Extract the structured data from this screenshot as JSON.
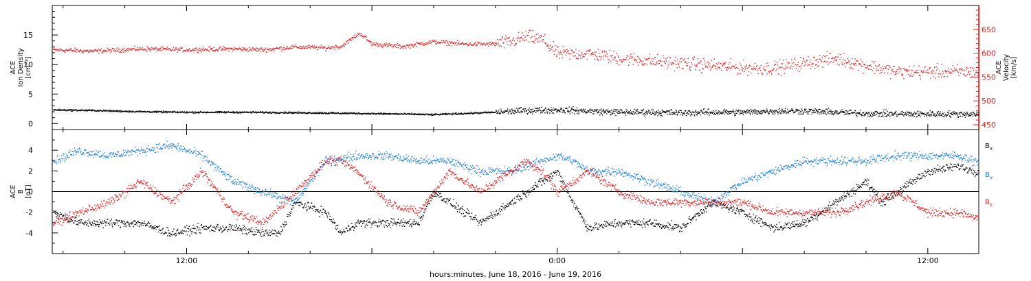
{
  "xlabel": "hours:minutes, June 18, 2016 - June 19, 2016",
  "colors": {
    "axes": "#000000",
    "density": "#000000",
    "velocity": "#e41c1c",
    "bx": "#000000",
    "by": "#1a7fe0",
    "bz": "#e41c1c"
  },
  "chart_data": [
    {
      "type": "scatter",
      "panel": "top",
      "x_unit": "hours since 00:00 June 18, 2016",
      "xlim": [
        7.65,
        37.65
      ],
      "x_ticklabels": [
        {
          "x": 12,
          "label": "12:00"
        },
        {
          "x": 24,
          "label": "0:00"
        },
        {
          "x": 36,
          "label": "12:00"
        }
      ],
      "ylabel_left": [
        "ACE",
        "Ion Density",
        "[cm⁻³]"
      ],
      "ylim_left": [
        -1,
        20
      ],
      "yticks_left": [
        0,
        5,
        10,
        15
      ],
      "ylabel_right": [
        "ACE",
        "Velocity",
        "[km/s]"
      ],
      "ylim_right": [
        440,
        700
      ],
      "yticks_right": [
        450,
        500,
        550,
        600,
        650
      ],
      "series": [
        {
          "name": "Ion Density",
          "axis": "left",
          "color": "#000000",
          "profile": [
            [
              7.7,
              2.4
            ],
            [
              9,
              2.3
            ],
            [
              10.5,
              2.1
            ],
            [
              12,
              2.0
            ],
            [
              14,
              2.0
            ],
            [
              16,
              1.9
            ],
            [
              17.5,
              1.8
            ],
            [
              19,
              1.7
            ],
            [
              20,
              1.6
            ],
            [
              21,
              1.8
            ],
            [
              22,
              2.0
            ],
            [
              23,
              2.3
            ],
            [
              24,
              2.4
            ],
            [
              25,
              2.2
            ],
            [
              26,
              2.0
            ],
            [
              27,
              2.0
            ],
            [
              28,
              1.9
            ],
            [
              29,
              2.0
            ],
            [
              30,
              2.0
            ],
            [
              31,
              2.2
            ],
            [
              32,
              2.2
            ],
            [
              33,
              2.0
            ],
            [
              34,
              1.8
            ],
            [
              35,
              1.7
            ]
          ]
        },
        {
          "name": "Velocity",
          "axis": "right",
          "color": "#e41c1c",
          "profile": [
            [
              7.7,
              608
            ],
            [
              9,
              605
            ],
            [
              10.5,
              610
            ],
            [
              12,
              608
            ],
            [
              13.5,
              610
            ],
            [
              14.5,
              608
            ],
            [
              15.5,
              614
            ],
            [
              16.5,
              612
            ],
            [
              17,
              615
            ],
            [
              17.6,
              643
            ],
            [
              18,
              620
            ],
            [
              19,
              615
            ],
            [
              20,
              625
            ],
            [
              21,
              620
            ],
            [
              22,
              620
            ],
            [
              22.5,
              625
            ],
            [
              23,
              635
            ],
            [
              23.5,
              630
            ],
            [
              24,
              600
            ],
            [
              25,
              600
            ],
            [
              26,
              590
            ],
            [
              27,
              585
            ],
            [
              28,
              580
            ],
            [
              29,
              575
            ],
            [
              30,
              570
            ],
            [
              31,
              570
            ],
            [
              32,
              580
            ],
            [
              33,
              590
            ],
            [
              34,
              575
            ],
            [
              35,
              562
            ]
          ]
        }
      ]
    },
    {
      "type": "scatter",
      "panel": "bottom",
      "x_unit": "hours since 00:00 June 18, 2016",
      "xlim": [
        7.65,
        37.65
      ],
      "x_ticklabels": [
        {
          "x": 12,
          "label": "12:00"
        },
        {
          "x": 24,
          "label": "0:00"
        },
        {
          "x": 36,
          "label": "12:00"
        }
      ],
      "ylabel": [
        "ACE",
        "B",
        "[nT]"
      ],
      "ylim": [
        -6,
        6
      ],
      "yticks": [
        -4,
        -2,
        0,
        2,
        4
      ],
      "zero_line": true,
      "series": [
        {
          "name": "Bx",
          "color": "#000000",
          "profile": [
            [
              7.7,
              -2
            ],
            [
              8.5,
              -3
            ],
            [
              9.5,
              -3
            ],
            [
              10.5,
              -3
            ],
            [
              11.5,
              -4
            ],
            [
              12.5,
              -3.5
            ],
            [
              13.5,
              -3.5
            ],
            [
              14.5,
              -4
            ],
            [
              15,
              -4
            ],
            [
              15.5,
              -1
            ],
            [
              16.5,
              -2
            ],
            [
              17,
              -4
            ],
            [
              17.5,
              -3
            ],
            [
              18.5,
              -3
            ],
            [
              19.5,
              -3
            ],
            [
              20,
              0
            ],
            [
              20.5,
              -1
            ],
            [
              21,
              -2
            ],
            [
              21.5,
              -3
            ],
            [
              22,
              -2
            ],
            [
              22.5,
              -1
            ],
            [
              23,
              0
            ],
            [
              23.5,
              1
            ],
            [
              24,
              2
            ],
            [
              24.5,
              -1
            ],
            [
              25,
              -3.5
            ],
            [
              26,
              -3
            ],
            [
              27,
              -3
            ],
            [
              28,
              -3.5
            ],
            [
              29,
              -1
            ],
            [
              30,
              -2
            ],
            [
              31,
              -3.5
            ],
            [
              32,
              -3
            ],
            [
              33,
              -1
            ],
            [
              34,
              1
            ],
            [
              34.5,
              -1
            ],
            [
              35,
              0
            ],
            [
              35.5,
              1
            ],
            [
              36,
              2
            ],
            [
              37,
              2.5
            ],
            [
              37.5,
              2
            ]
          ]
        },
        {
          "name": "By",
          "color": "#1a7fe0",
          "profile": [
            [
              7.7,
              3
            ],
            [
              8.5,
              4
            ],
            [
              9.5,
              3.5
            ],
            [
              10.5,
              4
            ],
            [
              11.5,
              4.5
            ],
            [
              12.5,
              3.5
            ],
            [
              13.5,
              1
            ],
            [
              14.5,
              0
            ],
            [
              15.5,
              -1
            ],
            [
              16.5,
              3
            ],
            [
              17.5,
              3.5
            ],
            [
              18.5,
              3.5
            ],
            [
              19.5,
              3
            ],
            [
              20.5,
              3
            ],
            [
              21.5,
              2
            ],
            [
              22.5,
              2
            ],
            [
              23.5,
              3
            ],
            [
              24,
              3.5
            ],
            [
              24.5,
              3
            ],
            [
              25,
              2
            ],
            [
              26,
              2
            ],
            [
              27,
              1
            ],
            [
              28,
              0
            ],
            [
              29,
              -1
            ],
            [
              30,
              1
            ],
            [
              31,
              2
            ],
            [
              32,
              3
            ],
            [
              33,
              3
            ],
            [
              34,
              3
            ],
            [
              35,
              3.5
            ],
            [
              36,
              3.5
            ],
            [
              37,
              3.5
            ],
            [
              37.5,
              3
            ]
          ]
        },
        {
          "name": "Bz",
          "color": "#e41c1c",
          "profile": [
            [
              7.7,
              -3
            ],
            [
              8.5,
              -2
            ],
            [
              9.5,
              -1
            ],
            [
              10.5,
              1
            ],
            [
              11.5,
              -1
            ],
            [
              12.5,
              2
            ],
            [
              13.5,
              -2
            ],
            [
              14.5,
              -3
            ],
            [
              15.5,
              0
            ],
            [
              16.5,
              3
            ],
            [
              17,
              3
            ],
            [
              17.5,
              2
            ],
            [
              18.5,
              -1
            ],
            [
              19.5,
              -2
            ],
            [
              20.5,
              2
            ],
            [
              21.5,
              0
            ],
            [
              22.5,
              2
            ],
            [
              23,
              3
            ],
            [
              23.5,
              2
            ],
            [
              24,
              0
            ],
            [
              24.5,
              1
            ],
            [
              25,
              2
            ],
            [
              26,
              0
            ],
            [
              27,
              -1
            ],
            [
              28,
              -1
            ],
            [
              29,
              -1
            ],
            [
              30,
              -1
            ],
            [
              31,
              -2
            ],
            [
              32,
              -2
            ],
            [
              33,
              -2
            ],
            [
              34,
              -1
            ],
            [
              35,
              0
            ],
            [
              35.5,
              -1
            ],
            [
              36,
              -2
            ],
            [
              37,
              -2
            ],
            [
              37.5,
              -2.5
            ]
          ]
        }
      ],
      "legend": [
        {
          "series": "Bx",
          "label": "B",
          "sub": "x",
          "color": "#000000"
        },
        {
          "series": "By",
          "label": "B",
          "sub": "y",
          "color": "#1a7fe0"
        },
        {
          "series": "Bz",
          "label": "B",
          "sub": "z",
          "color": "#e41c1c"
        }
      ],
      "legend_position": "right"
    }
  ]
}
